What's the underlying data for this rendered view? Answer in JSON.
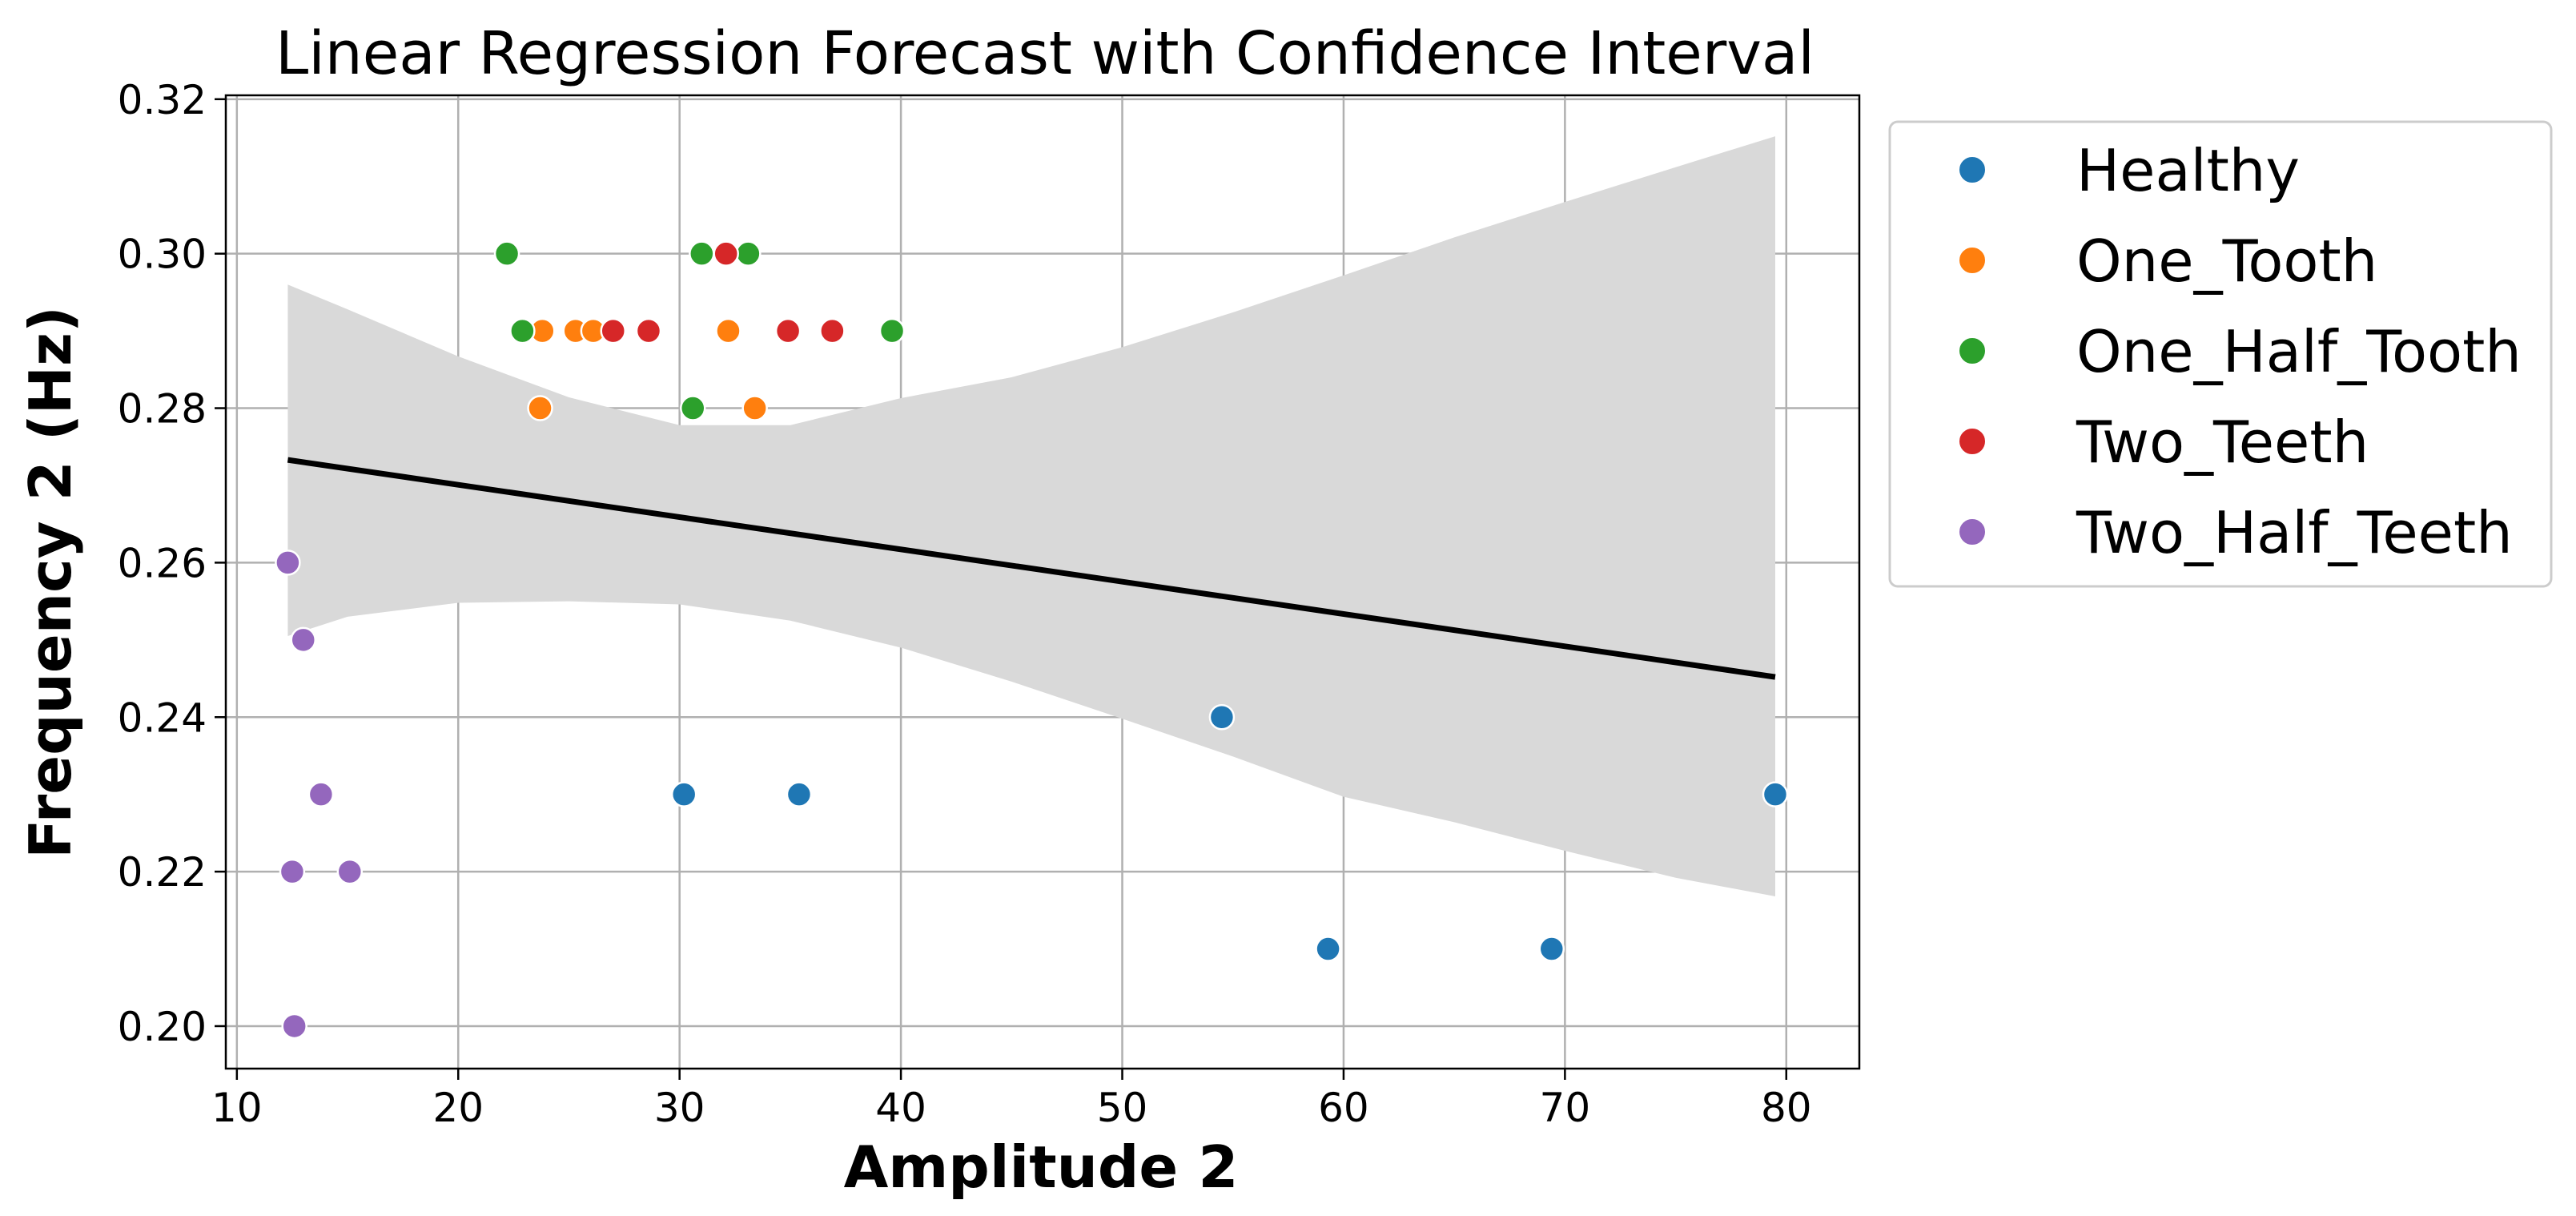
{
  "chart_data": {
    "type": "scatter",
    "title": "Linear Regression Forecast with Confidence Interval",
    "xlabel": "Amplitude 2",
    "ylabel": "Frequency 2 (Hz)",
    "xlim": [
      9.5,
      83.3
    ],
    "ylim": [
      0.1945,
      0.3205
    ],
    "x_ticks": [
      10,
      20,
      30,
      40,
      50,
      60,
      70,
      80
    ],
    "x_tick_labels": [
      "10",
      "20",
      "30",
      "40",
      "50",
      "60",
      "70",
      "80"
    ],
    "y_ticks": [
      0.2,
      0.22,
      0.24,
      0.26,
      0.28,
      0.3,
      0.32
    ],
    "y_tick_labels": [
      "0.20",
      "0.22",
      "0.24",
      "0.26",
      "0.28",
      "0.30",
      "0.32"
    ],
    "grid": true,
    "legend_position": "outside right, top",
    "series": [
      {
        "name": "Healthy",
        "color": "#1f77b4",
        "points": [
          [
            30.2,
            0.23
          ],
          [
            35.4,
            0.23
          ],
          [
            54.5,
            0.24
          ],
          [
            59.3,
            0.21
          ],
          [
            69.4,
            0.21
          ],
          [
            79.5,
            0.23
          ]
        ]
      },
      {
        "name": "One_Tooth",
        "color": "#ff7f0e",
        "points": [
          [
            23.7,
            0.28
          ],
          [
            23.8,
            0.29
          ],
          [
            25.3,
            0.29
          ],
          [
            26.1,
            0.29
          ],
          [
            32.2,
            0.29
          ],
          [
            33.4,
            0.28
          ]
        ]
      },
      {
        "name": "One_Half_Tooth",
        "color": "#2ca02c",
        "points": [
          [
            22.2,
            0.3
          ],
          [
            22.9,
            0.29
          ],
          [
            30.6,
            0.28
          ],
          [
            31.0,
            0.3
          ],
          [
            33.1,
            0.3
          ],
          [
            39.6,
            0.29
          ]
        ]
      },
      {
        "name": "Two_Teeth",
        "color": "#d62728",
        "points": [
          [
            27.0,
            0.29
          ],
          [
            28.6,
            0.29
          ],
          [
            32.1,
            0.3
          ],
          [
            34.9,
            0.29
          ],
          [
            36.9,
            0.29
          ]
        ]
      },
      {
        "name": "Two_Half_Teeth",
        "color": "#9467bd",
        "points": [
          [
            12.3,
            0.26
          ],
          [
            13.0,
            0.25
          ],
          [
            13.8,
            0.23
          ],
          [
            12.5,
            0.22
          ],
          [
            15.1,
            0.22
          ],
          [
            12.6,
            0.2
          ]
        ]
      }
    ],
    "regression": {
      "color": "#000000",
      "line": [
        [
          12.3,
          0.2733
        ],
        [
          79.5,
          0.2452
        ]
      ],
      "ci_color": "#d9d9d9",
      "ci_x": [
        12.3,
        15,
        20,
        25,
        30,
        35,
        40,
        45,
        50,
        55,
        60,
        65,
        70,
        75,
        79.5
      ],
      "ci_lower": [
        0.2505,
        0.253,
        0.2548,
        0.255,
        0.2546,
        0.2525,
        0.249,
        0.2446,
        0.2398,
        0.2349,
        0.2297,
        0.2264,
        0.2227,
        0.2192,
        0.2168
      ],
      "ci_upper": [
        0.296,
        0.2928,
        0.2867,
        0.2814,
        0.2778,
        0.2778,
        0.2813,
        0.284,
        0.2879,
        0.2924,
        0.2972,
        0.3021,
        0.3067,
        0.3112,
        0.3152
      ]
    }
  }
}
